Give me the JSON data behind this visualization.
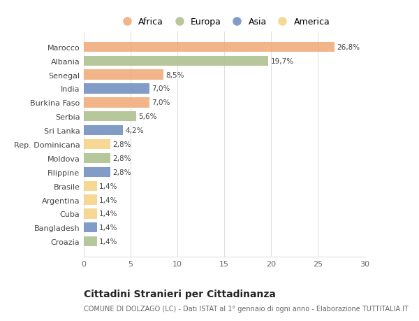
{
  "countries": [
    "Croazia",
    "Bangladesh",
    "Cuba",
    "Argentina",
    "Brasile",
    "Filippine",
    "Moldova",
    "Rep. Dominicana",
    "Sri Lanka",
    "Serbia",
    "Burkina Faso",
    "India",
    "Senegal",
    "Albania",
    "Marocco"
  ],
  "values": [
    1.4,
    1.4,
    1.4,
    1.4,
    1.4,
    2.8,
    2.8,
    2.8,
    4.2,
    5.6,
    7.0,
    7.0,
    8.5,
    19.7,
    26.8
  ],
  "labels": [
    "1,4%",
    "1,4%",
    "1,4%",
    "1,4%",
    "1,4%",
    "2,8%",
    "2,8%",
    "2,8%",
    "4,2%",
    "5,6%",
    "7,0%",
    "7,0%",
    "8,5%",
    "19,7%",
    "26,8%"
  ],
  "continents": [
    "Europa",
    "Asia",
    "America",
    "America",
    "America",
    "Asia",
    "Europa",
    "America",
    "Asia",
    "Europa",
    "Africa",
    "Asia",
    "Africa",
    "Europa",
    "Africa"
  ],
  "colors": {
    "Africa": "#F0A875",
    "Europa": "#ABBE8B",
    "Asia": "#6B8CBE",
    "America": "#F5D080"
  },
  "legend_order": [
    "Africa",
    "Europa",
    "Asia",
    "America"
  ],
  "title": "Cittadini Stranieri per Cittadinanza",
  "subtitle": "COMUNE DI DOLZAGO (LC) - Dati ISTAT al 1° gennaio di ogni anno - Elaborazione TUTTITALIA.IT",
  "xlim": [
    0,
    30
  ],
  "xticks": [
    0,
    5,
    10,
    15,
    20,
    25,
    30
  ],
  "bg_color": "#FFFFFF",
  "grid_color": "#E0E0E0",
  "bar_height": 0.72
}
